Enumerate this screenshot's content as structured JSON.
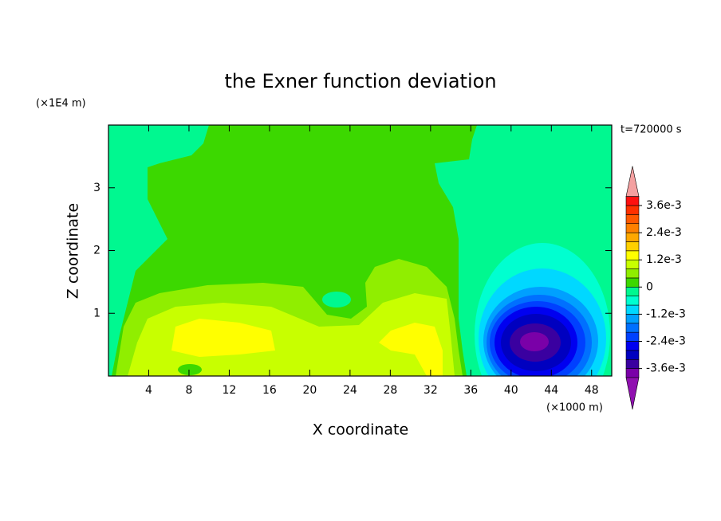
{
  "chart_data": {
    "type": "contour",
    "title": "the Exner function deviation",
    "xlabel": "X coordinate",
    "ylabel": "Z coordinate",
    "x_unit": "(×1000 m)",
    "y_unit": "(×1E4 m)",
    "annotation": "t=720000 s",
    "xlim": [
      0,
      50
    ],
    "xticks": [
      4,
      8,
      12,
      16,
      20,
      24,
      28,
      32,
      36,
      40,
      44,
      48
    ],
    "ylim": [
      0,
      4
    ],
    "yticks": [
      1,
      2,
      3
    ],
    "levels": [
      -0.004,
      -0.0036,
      -0.0032,
      -0.0028,
      -0.0024,
      -0.002,
      -0.0016,
      -0.0012,
      -0.0008,
      -0.0004,
      0,
      0.0004,
      0.0008,
      0.0012,
      0.0016,
      0.002,
      0.0024,
      0.0028,
      0.0032,
      0.0036,
      0.004
    ],
    "colors": [
      "#7a00a8",
      "#3a00a0",
      "#0000c0",
      "#0000f0",
      "#0040ff",
      "#0070ff",
      "#00a0ff",
      "#00d8ff",
      "#00ffd0",
      "#00f890",
      "#3cd800",
      "#90ee00",
      "#c8ff00",
      "#ffff00",
      "#ffd000",
      "#ffa800",
      "#ff8000",
      "#ff5800",
      "#ff3000",
      "#ff1010"
    ],
    "over_color": "#f4a0a0",
    "under_color": "#9010b0",
    "colorbar_ticks": [
      {
        "value": -0.0036,
        "label": "-3.6e-3"
      },
      {
        "value": -0.0024,
        "label": "-2.4e-3"
      },
      {
        "value": -0.0012,
        "label": "-1.2e-3"
      },
      0,
      {
        "value": 0.0012,
        "label": "1.2e-3"
      },
      {
        "value": 0.0024,
        "label": "2.4e-3"
      },
      {
        "value": 0.0036,
        "label": "3.6e-3"
      }
    ]
  }
}
